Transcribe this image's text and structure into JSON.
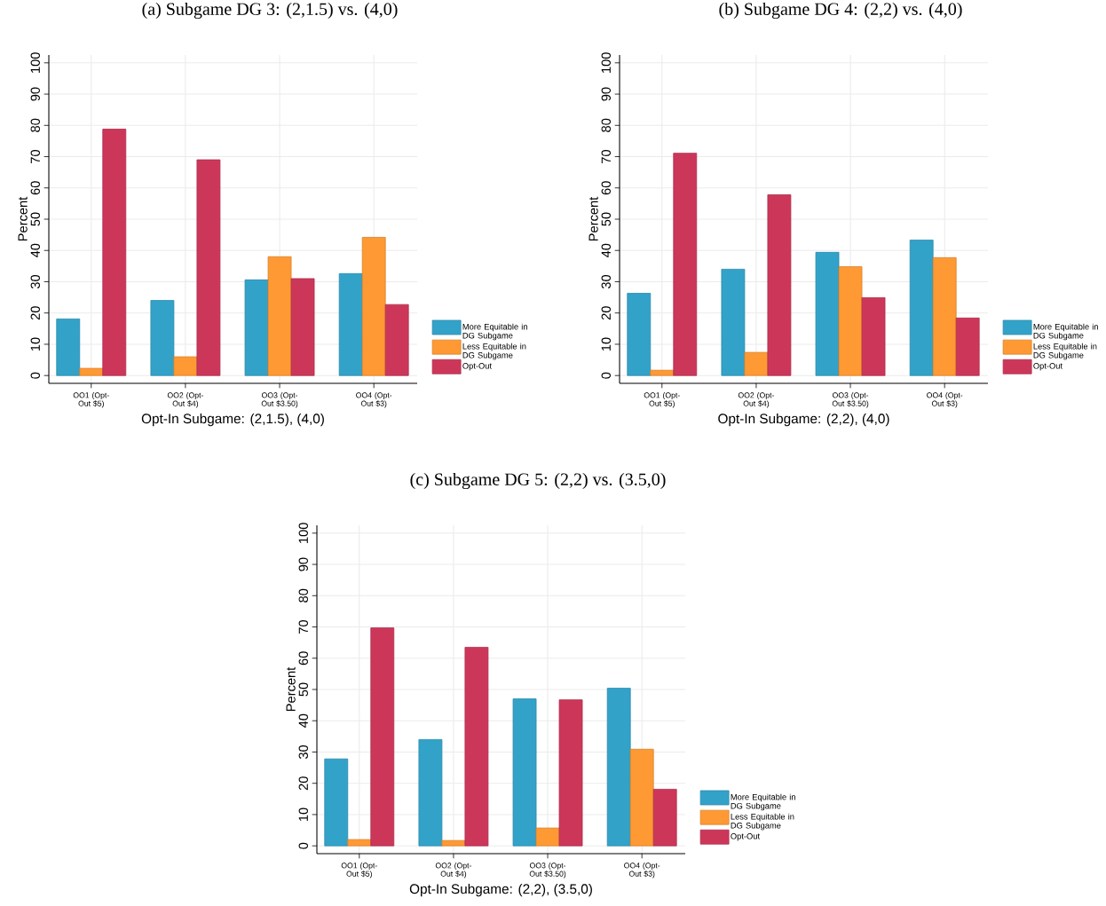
{
  "chart_data": [
    {
      "type": "bar",
      "title": "(a) Subgame DG 3: (2,1.5) vs. (4,0)",
      "xlabel": "Opt-In Subgame: (2,1.5), (4,0)",
      "ylabel": "Percent",
      "categories": [
        "OO1 (Opt-Out $5)",
        "OO2 (Opt-Out $4)",
        "OO3 (Opt-Out $3.50)",
        "OO4 (Opt-Out $3)"
      ],
      "series": [
        {
          "name": "More Equitable in DG Subgame",
          "color": "#33a2c9",
          "values": [
            18.1,
            24,
            30.6,
            32.6
          ]
        },
        {
          "name": "Less Equitable in DG Subgame",
          "color": "#ff9933",
          "values": [
            2.3,
            6,
            38,
            44.2
          ]
        },
        {
          "name": "Opt-Out",
          "color": "#cc3759",
          "values": [
            78.8,
            69,
            31,
            22.7
          ]
        }
      ],
      "ylim": [
        -2.5,
        102.5
      ],
      "yticks": [
        0,
        10,
        20,
        30,
        40,
        50,
        60,
        70,
        80,
        90,
        100
      ],
      "grid": true,
      "legend": "right"
    },
    {
      "type": "bar",
      "title": "(b) Subgame DG 4: (2,2) vs. (4,0)",
      "xlabel": "Opt-In Subgame: (2,2), (4,0)",
      "ylabel": "Percent",
      "categories": [
        "OO1 (Opt-Out $5)",
        "OO2 (Opt-Out $4)",
        "OO3 (Opt-Out $3.50)",
        "OO4 (Opt-Out $3)"
      ],
      "series": [
        {
          "name": "More Equitable in DG Subgame",
          "color": "#33a2c9",
          "values": [
            26.3,
            34,
            39.4,
            43.3
          ]
        },
        {
          "name": "Less Equitable in DG Subgame",
          "color": "#ff9933",
          "values": [
            1.7,
            7.4,
            34.8,
            37.7
          ]
        },
        {
          "name": "Opt-Out",
          "color": "#cc3759",
          "values": [
            71.1,
            57.8,
            24.9,
            18.4
          ]
        }
      ],
      "ylim": [
        -2.5,
        102.5
      ],
      "yticks": [
        0,
        10,
        20,
        30,
        40,
        50,
        60,
        70,
        80,
        90,
        100
      ],
      "grid": true,
      "legend": "right"
    },
    {
      "type": "bar",
      "title": "(c) Subgame DG 5: (2,2) vs. (3.5,0)",
      "xlabel": "Opt-In Subgame: (2,2), (3.5,0)",
      "ylabel": "Percent",
      "categories": [
        "OO1 (Opt-Out $5)",
        "OO2 (Opt-Out $4)",
        "OO3 (Opt-Out $3.50)",
        "OO4 (Opt-Out $3)"
      ],
      "series": [
        {
          "name": "More Equitable in DG Subgame",
          "color": "#33a2c9",
          "values": [
            27.8,
            34,
            47,
            50.4
          ]
        },
        {
          "name": "Less Equitable in DG Subgame",
          "color": "#ff9933",
          "values": [
            2,
            1.7,
            5.7,
            30.9
          ]
        },
        {
          "name": "Opt-Out",
          "color": "#cc3759",
          "values": [
            69.7,
            63.5,
            46.7,
            18.1
          ]
        }
      ],
      "ylim": [
        -2.5,
        102.5
      ],
      "yticks": [
        0,
        10,
        20,
        30,
        40,
        50,
        60,
        70,
        80,
        90,
        100
      ],
      "grid": true,
      "legend": "right"
    }
  ]
}
